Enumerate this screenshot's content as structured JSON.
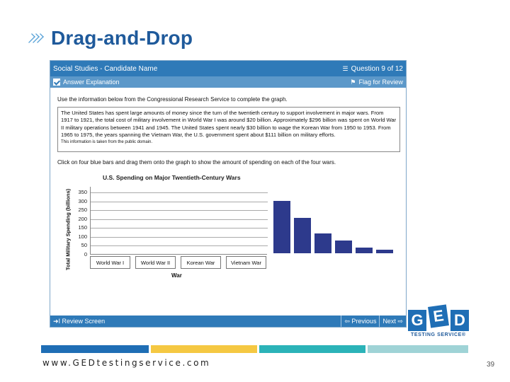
{
  "slide": {
    "title": "Drag-and-Drop",
    "url": "www.GEDtestingservice.com",
    "page_number": "39",
    "logo_letters": [
      "G",
      "E",
      "D"
    ],
    "logo_subtitle": "TESTING SERVICE®"
  },
  "exam": {
    "header_title": "Social Studies - Candidate Name",
    "question_counter": "Question 9 of 12",
    "answer_explanation": "Answer Explanation",
    "flag_for_review": "Flag for Review",
    "instruction": "Use the information below from the Congressional Research Service to complete the graph.",
    "passage": "The United States has spent large amounts of money since the turn of the twentieth century to support involvement in major wars. From 1917 to 1921, the total cost of military involvement in World War I was around $20 billion. Approximately $296 billion was spent on World War II military operations between 1941 and 1945. The United States spent nearly $30 billion to wage the Korean War from 1950 to 1953. From 1965 to 1975, the years spanning the Vietnam War, the U.S. government spent about $111 billion on military efforts.",
    "passage_note": "This information is taken from the public domain.",
    "instruction2": "Click on four blue bars and drag them onto the graph to show the amount of spending on each of the four wars.",
    "review_screen": "I Review Screen",
    "previous": "Previous",
    "next": "Next"
  },
  "chart_data": {
    "type": "bar",
    "title": "U.S. Spending on Major Twentieth-Century Wars",
    "ylabel": "Total Military Spending (billions)",
    "xlabel": "War",
    "categories": [
      "World War I",
      "World War II",
      "Korean War",
      "Vietnam War"
    ],
    "values": [
      null,
      null,
      null,
      null
    ],
    "ylim": [
      0,
      350
    ],
    "yticks": [
      "350",
      "300",
      "250",
      "200",
      "150",
      "100",
      "50",
      "0"
    ],
    "draggable_bars": [
      296,
      200,
      111,
      70,
      30,
      20
    ],
    "bar_color": "#2d3a8c"
  },
  "colors": {
    "header_blue": "#2f7ab8",
    "subheader_blue": "#5c98c9",
    "title_blue": "#1f5a9b",
    "strip": [
      "#1f6eb5",
      "#f5c842",
      "#2bb3b8",
      "#9fd3d6"
    ]
  },
  "icons": {
    "title_chevrons": "triple-chevron-icon",
    "question": "list-icon",
    "flag": "flag-icon",
    "answer": "checkbox-icon",
    "review": "review-arrow-icon",
    "previous": "left-arrow-icon",
    "next": "right-arrow-icon"
  }
}
